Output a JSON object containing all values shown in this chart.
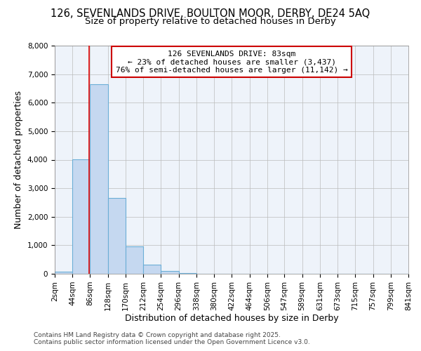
{
  "title_line1": "126, SEVENLANDS DRIVE, BOULTON MOOR, DERBY, DE24 5AQ",
  "title_line2": "Size of property relative to detached houses in Derby",
  "xlabel": "Distribution of detached houses by size in Derby",
  "ylabel": "Number of detached properties",
  "annotation_line1": "126 SEVENLANDS DRIVE: 83sqm",
  "annotation_line2": "← 23% of detached houses are smaller (3,437)",
  "annotation_line3": "76% of semi-detached houses are larger (11,142) →",
  "property_size": 83,
  "bar_edges": [
    2,
    44,
    86,
    128,
    170,
    212,
    254,
    296,
    338,
    380,
    422,
    464,
    506,
    547,
    589,
    631,
    673,
    715,
    757,
    799,
    841
  ],
  "bar_heights": [
    65,
    4010,
    6650,
    2660,
    970,
    330,
    110,
    30,
    10,
    5,
    3,
    2,
    1,
    1,
    0,
    0,
    0,
    0,
    0,
    0
  ],
  "bar_color": "#c5d8f0",
  "bar_edge_color": "#6baed6",
  "red_line_color": "#dd0000",
  "annotation_box_color": "#cc0000",
  "plot_bg_color": "#eef3fa",
  "background_color": "#ffffff",
  "grid_color": "#bbbbbb",
  "ylim": [
    0,
    8000
  ],
  "yticks": [
    0,
    1000,
    2000,
    3000,
    4000,
    5000,
    6000,
    7000,
    8000
  ],
  "tick_labels": [
    "2sqm",
    "44sqm",
    "86sqm",
    "128sqm",
    "170sqm",
    "212sqm",
    "254sqm",
    "296sqm",
    "338sqm",
    "380sqm",
    "422sqm",
    "464sqm",
    "506sqm",
    "547sqm",
    "589sqm",
    "631sqm",
    "673sqm",
    "715sqm",
    "757sqm",
    "799sqm",
    "841sqm"
  ],
  "footer_line1": "Contains HM Land Registry data © Crown copyright and database right 2025.",
  "footer_line2": "Contains public sector information licensed under the Open Government Licence v3.0.",
  "title_fontsize": 10.5,
  "subtitle_fontsize": 9.5,
  "axis_label_fontsize": 9,
  "tick_fontsize": 7.5,
  "annotation_fontsize": 8,
  "footer_fontsize": 6.5
}
